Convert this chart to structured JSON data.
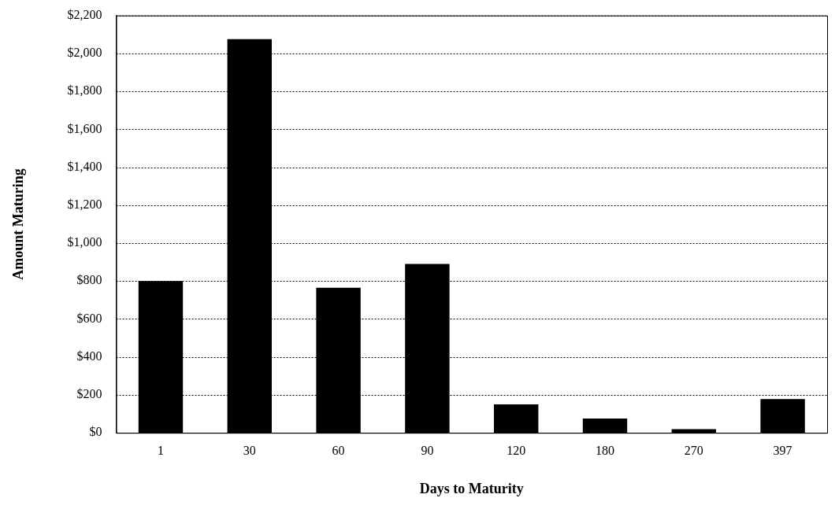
{
  "chart_data": {
    "type": "bar",
    "xlabel": "Days to Maturity",
    "ylabel": "Amount Maturing",
    "categories": [
      "1",
      "30",
      "60",
      "90",
      "120",
      "180",
      "270",
      "397"
    ],
    "values": [
      800,
      2075,
      765,
      890,
      150,
      75,
      20,
      178
    ],
    "color": "#000000",
    "ylim": [
      0,
      2200
    ],
    "yticks": [
      {
        "value": 0,
        "label": "$0"
      },
      {
        "value": 200,
        "label": "$200"
      },
      {
        "value": 400,
        "label": "$400"
      },
      {
        "value": 600,
        "label": "$600"
      },
      {
        "value": 800,
        "label": "$800"
      },
      {
        "value": 1000,
        "label": "$1,000"
      },
      {
        "value": 1200,
        "label": "$1,200"
      },
      {
        "value": 1400,
        "label": "$1,400"
      },
      {
        "value": 1600,
        "label": "$1,600"
      },
      {
        "value": 1800,
        "label": "$1,800"
      },
      {
        "value": 2000,
        "label": "$2,000"
      },
      {
        "value": 2200,
        "label": "$2,200"
      }
    ],
    "grid": "y"
  }
}
